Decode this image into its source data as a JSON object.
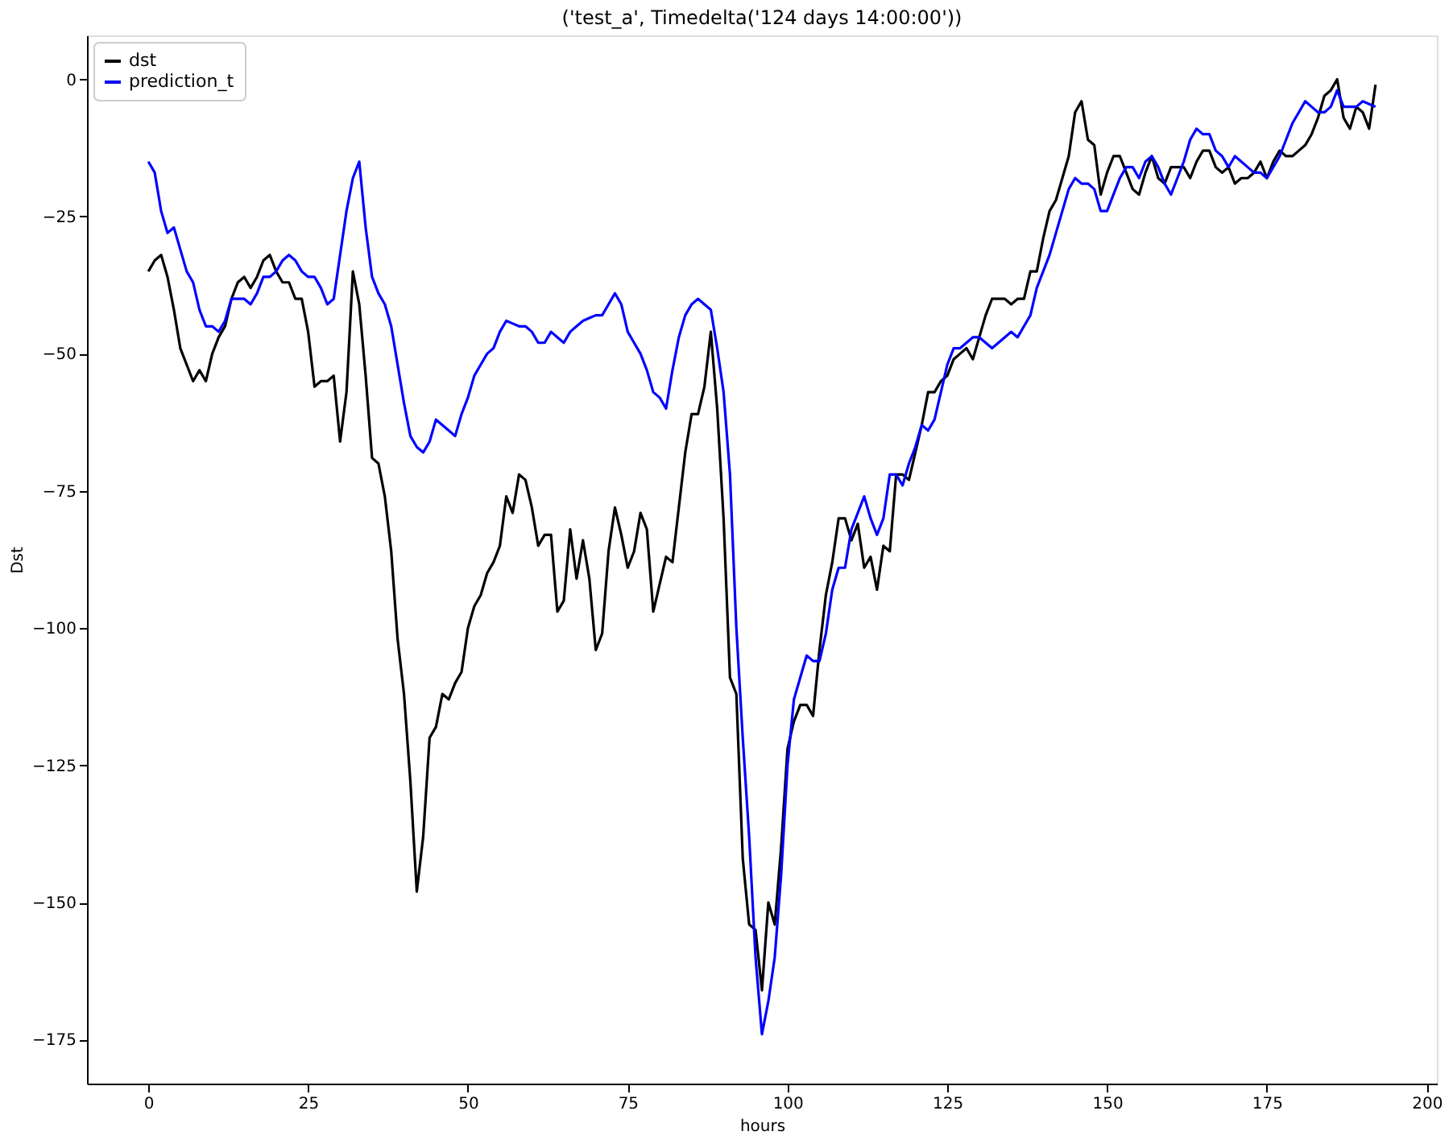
{
  "chart_data": {
    "type": "line",
    "title": "('test_a', Timedelta('124 days 14:00:00'))",
    "xlabel": "hours",
    "ylabel": "Dst",
    "x": [
      0,
      1,
      2,
      3,
      4,
      5,
      6,
      7,
      8,
      9,
      10,
      11,
      12,
      13,
      14,
      15,
      16,
      17,
      18,
      19,
      20,
      21,
      22,
      23,
      24,
      25,
      26,
      27,
      28,
      29,
      30,
      31,
      32,
      33,
      34,
      35,
      36,
      37,
      38,
      39,
      40,
      41,
      42,
      43,
      44,
      45,
      46,
      47,
      48,
      49,
      50,
      51,
      52,
      53,
      54,
      55,
      56,
      57,
      58,
      59,
      60,
      61,
      62,
      63,
      64,
      65,
      66,
      67,
      68,
      69,
      70,
      71,
      72,
      73,
      74,
      75,
      76,
      77,
      78,
      79,
      80,
      81,
      82,
      83,
      84,
      85,
      86,
      87,
      88,
      89,
      90,
      91,
      92,
      93,
      94,
      95,
      96,
      97,
      98,
      99,
      100,
      101,
      102,
      103,
      104,
      105,
      106,
      107,
      108,
      109,
      110,
      111,
      112,
      113,
      114,
      115,
      116,
      117,
      118,
      119,
      120,
      121,
      122,
      123,
      124,
      125,
      126,
      127,
      128,
      129,
      130,
      131,
      132,
      133,
      134,
      135,
      136,
      137,
      138,
      139,
      140,
      141,
      142,
      143,
      144,
      145,
      146,
      147,
      148,
      149,
      150,
      151,
      152,
      153,
      154,
      155,
      156,
      157,
      158,
      159,
      160,
      161,
      162,
      163,
      164,
      165,
      166,
      167,
      168,
      169,
      170,
      171,
      172,
      173,
      174,
      175,
      176,
      177,
      178,
      179,
      180,
      181,
      182,
      183,
      184,
      185,
      186,
      187,
      188,
      189,
      190,
      191,
      192
    ],
    "series": [
      {
        "name": "dst",
        "color": "#000000",
        "values": [
          -35,
          -33,
          -32,
          -36,
          -42,
          -49,
          -52,
          -55,
          -53,
          -55,
          -50,
          -47,
          -45,
          -40,
          -37,
          -36,
          -38,
          -36,
          -33,
          -32,
          -35,
          -37,
          -37,
          -40,
          -40,
          -46,
          -56,
          -55,
          -55,
          -54,
          -66,
          -57,
          -35,
          -41,
          -54,
          -69,
          -70,
          -76,
          -86,
          -102,
          -112,
          -128,
          -148,
          -138,
          -120,
          -118,
          -112,
          -113,
          -110,
          -108,
          -100,
          -96,
          -94,
          -90,
          -88,
          -85,
          -76,
          -79,
          -72,
          -73,
          -78,
          -85,
          -83,
          -83,
          -97,
          -95,
          -82,
          -91,
          -84,
          -91,
          -104,
          -101,
          -86,
          -78,
          -83,
          -89,
          -86,
          -79,
          -82,
          -97,
          -92,
          -87,
          -88,
          -78,
          -68,
          -61,
          -61,
          -56,
          -46,
          -60,
          -80,
          -109,
          -112,
          -142,
          -154,
          -155,
          -166,
          -150,
          -154,
          -140,
          -122,
          -117,
          -114,
          -114,
          -116,
          -104,
          -94,
          -88,
          -80,
          -80,
          -84,
          -81,
          -89,
          -87,
          -93,
          -85,
          -86,
          -72,
          -72,
          -73,
          -68,
          -63,
          -57,
          -57,
          -55,
          -54,
          -51,
          -50,
          -49,
          -51,
          -47,
          -43,
          -40,
          -40,
          -40,
          -41,
          -40,
          -40,
          -35,
          -35,
          -29,
          -24,
          -22,
          -18,
          -14,
          -6,
          -4,
          -11,
          -12,
          -21,
          -17,
          -14,
          -14,
          -17,
          -20,
          -21,
          -17,
          -14,
          -18,
          -19,
          -16,
          -16,
          -16,
          -18,
          -15,
          -13,
          -13,
          -16,
          -17,
          -16,
          -19,
          -18,
          -18,
          -17,
          -15,
          -18,
          -15,
          -13,
          -14,
          -14,
          -13,
          -12,
          -10,
          -7,
          -3,
          -2,
          0,
          -7,
          -9,
          -5,
          -6,
          -9,
          -1
        ]
      },
      {
        "name": "prediction_t",
        "color": "#0000ff",
        "values": [
          -15,
          -17,
          -24,
          -28,
          -27,
          -31,
          -35,
          -37,
          -42,
          -45,
          -45,
          -46,
          -44,
          -40,
          -40,
          -40,
          -41,
          -39,
          -36,
          -36,
          -35,
          -33,
          -32,
          -33,
          -35,
          -36,
          -36,
          -38,
          -41,
          -40,
          -32,
          -24,
          -18,
          -15,
          -27,
          -36,
          -39,
          -41,
          -45,
          -52,
          -59,
          -65,
          -67,
          -68,
          -66,
          -62,
          -63,
          -64,
          -65,
          -61,
          -58,
          -54,
          -52,
          -50,
          -49,
          -46,
          -44,
          -44.5,
          -45,
          -45,
          -46,
          -48,
          -48,
          -46,
          -47,
          -48,
          -46,
          -45,
          -44,
          -43.5,
          -43,
          -43,
          -41,
          -39,
          -41,
          -46,
          -48,
          -50,
          -53,
          -57,
          -58,
          -60,
          -53,
          -47,
          -43,
          -41,
          -40,
          -41,
          -42,
          -49,
          -57,
          -72,
          -100,
          -120,
          -138,
          -160,
          -174,
          -168,
          -160,
          -145,
          -125,
          -113,
          -109,
          -105,
          -106,
          -106,
          -101,
          -93,
          -89,
          -89,
          -82,
          -79,
          -76,
          -80,
          -83,
          -80,
          -72,
          -72,
          -74,
          -70,
          -67,
          -63,
          -64,
          -62,
          -57,
          -52,
          -49,
          -49,
          -48,
          -47,
          -47,
          -48,
          -49,
          -48,
          -47,
          -46,
          -47,
          -45,
          -43,
          -38,
          -35,
          -32,
          -28,
          -24,
          -20,
          -18,
          -19,
          -19,
          -20,
          -24,
          -24,
          -21,
          -18,
          -16,
          -16,
          -18,
          -15,
          -14,
          -16,
          -19,
          -21,
          -18,
          -15,
          -11,
          -9,
          -10,
          -10,
          -13,
          -14,
          -16,
          -14,
          -15,
          -16,
          -17,
          -17,
          -18,
          -16,
          -14,
          -11,
          -8,
          -6,
          -4,
          -5,
          -6,
          -6,
          -5,
          -2,
          -5,
          -5,
          -5,
          -4,
          -4.5,
          -5
        ]
      }
    ],
    "xlim": [
      -9.6,
      201.6
    ],
    "ylim": [
      -183,
      8
    ],
    "xticks": [
      0,
      25,
      50,
      75,
      100,
      125,
      150,
      175,
      200
    ],
    "yticks": [
      -175,
      -150,
      -125,
      -100,
      -75,
      -50,
      -25,
      0
    ],
    "grid": false,
    "legend": "top left",
    "line_style": "solid",
    "marker": "none"
  }
}
